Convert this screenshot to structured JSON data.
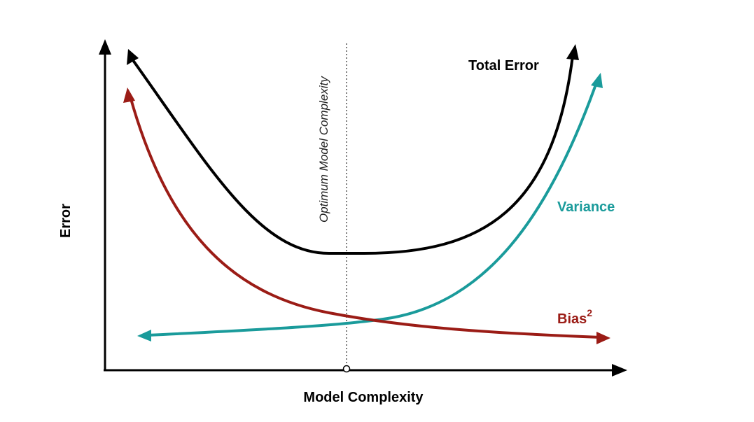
{
  "axes": {
    "y_label": "Error",
    "x_label": "Model Complexity"
  },
  "optimum": {
    "label": "Optimum Model Complexity"
  },
  "curves": {
    "total_error": {
      "label": "Total Error",
      "color": "#000000"
    },
    "variance": {
      "label": "Variance",
      "color": "#1a9b9b"
    },
    "bias": {
      "label": "Bias",
      "superscript": "2",
      "color": "#9b1c16"
    }
  },
  "colors": {
    "axis": "#000000",
    "optimum_line": "#555555"
  }
}
